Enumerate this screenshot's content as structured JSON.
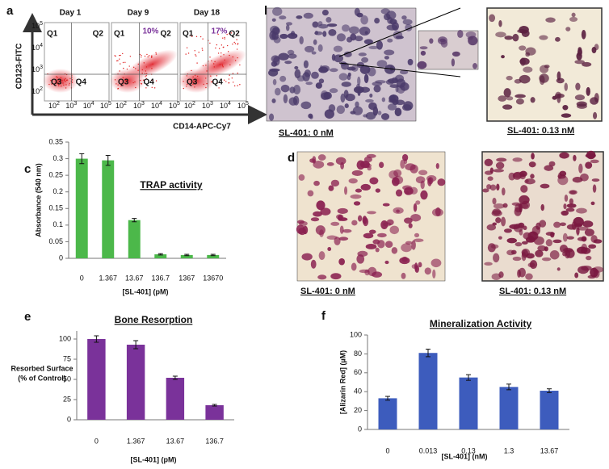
{
  "flow": {
    "panel": "a",
    "y_label": "CD123-FITC",
    "x_label": "CD14-APC-Cy7",
    "quadrants": [
      "Q1",
      "Q2",
      "Q3",
      "Q4"
    ],
    "tick_base": "10",
    "x_tick_exps": [
      "2",
      "3",
      "4",
      "5"
    ],
    "y_tick_exps": [
      "5",
      "4",
      "3",
      "2"
    ],
    "plots": [
      {
        "day": "Day 1"
      },
      {
        "day": "Day 9",
        "percent": "10%"
      },
      {
        "day": "Day 18",
        "percent": "17%"
      }
    ]
  },
  "micro_b": {
    "panel": "b",
    "captions": [
      "SL-401:    0 nM",
      "SL-401:  0.13 nM"
    ]
  },
  "micro_d": {
    "panel": "d",
    "captions": [
      "SL-401: 0 nM",
      "SL-401: 0.13 nM"
    ]
  },
  "chart_data": [
    {
      "type": "bar",
      "panel": "c",
      "title": "TRAP activity",
      "y_label": "Absorbance (540 nm)",
      "x_label": "[SL-401] (pM)",
      "categories": [
        "0",
        "1.367",
        "13.67",
        "136.7",
        "1367",
        "13670"
      ],
      "values": [
        0.3,
        0.295,
        0.115,
        0.012,
        0.01,
        0.01
      ],
      "errors": [
        0.015,
        0.015,
        0.005,
        0.002,
        0.002,
        0.002
      ],
      "color": "#4cb84a",
      "ylim": [
        0,
        0.35
      ],
      "yticks": [
        0,
        0.05,
        0.1,
        0.15,
        0.2,
        0.25,
        0.3,
        0.35
      ]
    },
    {
      "type": "bar",
      "panel": "e",
      "title": "Bone Resorption",
      "y_label": [
        "Resorbed Surface",
        "(% of Control)"
      ],
      "x_label": "[SL-401]  (pM)",
      "categories": [
        "0",
        "1.367",
        "13.67",
        "136.7"
      ],
      "values": [
        100,
        93,
        52,
        18
      ],
      "errors": [
        4,
        5,
        2,
        1
      ],
      "color": "#7a329a",
      "ylim": [
        0,
        110
      ],
      "yticks": [
        0,
        25,
        50,
        75,
        100
      ]
    },
    {
      "type": "bar",
      "panel": "f",
      "title": "Mineralization Activity",
      "y_label": "[Alizarin Red] (µM)",
      "x_label": "[SL-401] (nM)",
      "categories": [
        "0",
        "0.013",
        "0.13",
        "1.3",
        "13.67"
      ],
      "values": [
        33,
        81,
        55,
        45,
        41
      ],
      "errors": [
        2,
        4,
        3,
        3,
        2
      ],
      "color": "#3d5cbd",
      "ylim": [
        0,
        100
      ],
      "yticks": [
        0,
        20,
        40,
        60,
        80,
        100
      ]
    }
  ]
}
